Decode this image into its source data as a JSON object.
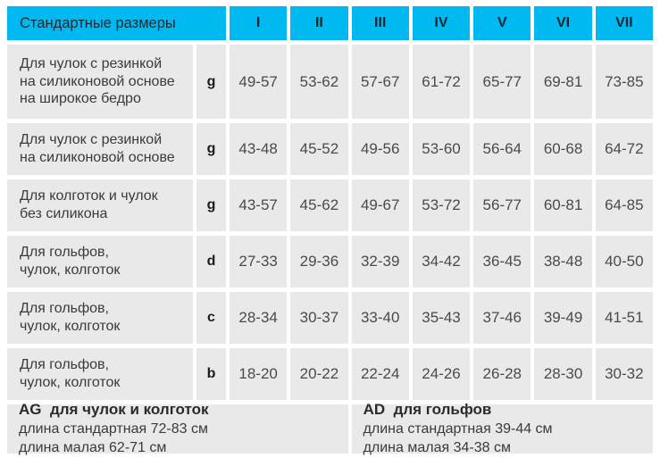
{
  "colors": {
    "accent": "#00b9f0",
    "cell_bg": "#e9e9e9",
    "text": "#3a3a3a",
    "dark_text": "#1c1c1c"
  },
  "chart_data": {
    "type": "table",
    "title": "Стандартные размеры",
    "columns": [
      "I",
      "II",
      "III",
      "IV",
      "V",
      "VI",
      "VII"
    ],
    "rows": [
      {
        "label": "Для чулок с резинкой\nна силиконовой основе\nна широкое бедро",
        "letter": "g",
        "values": [
          "49-57",
          "53-62",
          "57-67",
          "61-72",
          "65-77",
          "69-81",
          "73-85"
        ]
      },
      {
        "label": "Для чулок с резинкой\nна силиконовой основе",
        "letter": "g",
        "values": [
          "43-48",
          "45-52",
          "49-56",
          "53-60",
          "56-64",
          "60-68",
          "64-72"
        ]
      },
      {
        "label": "Для колготок и чулок\nбез силикона",
        "letter": "g",
        "values": [
          "43-57",
          "45-62",
          "49-67",
          "53-72",
          "56-77",
          "60-81",
          "64-85"
        ]
      },
      {
        "label": "Для гольфов,\nчулок, колготок",
        "letter": "d",
        "values": [
          "27-33",
          "29-36",
          "32-39",
          "34-42",
          "36-45",
          "38-48",
          "40-50"
        ]
      },
      {
        "label": "Для гольфов,\nчулок, колготок",
        "letter": "c",
        "values": [
          "28-34",
          "30-37",
          "33-40",
          "35-43",
          "37-46",
          "39-49",
          "41-51"
        ]
      },
      {
        "label": "Для гольфов,\nчулок, колготок",
        "letter": "b",
        "values": [
          "18-20",
          "20-22",
          "22-24",
          "24-26",
          "26-28",
          "28-30",
          "30-32"
        ]
      }
    ],
    "footer": {
      "left": {
        "title": "AG  для чулок и колготок",
        "line1": "длина стандартная 72-83 см",
        "line2": "длина малая 62-71 см"
      },
      "right": {
        "title": "AD  для гольфов",
        "line1": "длина стандартная 39-44 см",
        "line2": "длина малая 34-38 см"
      }
    }
  }
}
